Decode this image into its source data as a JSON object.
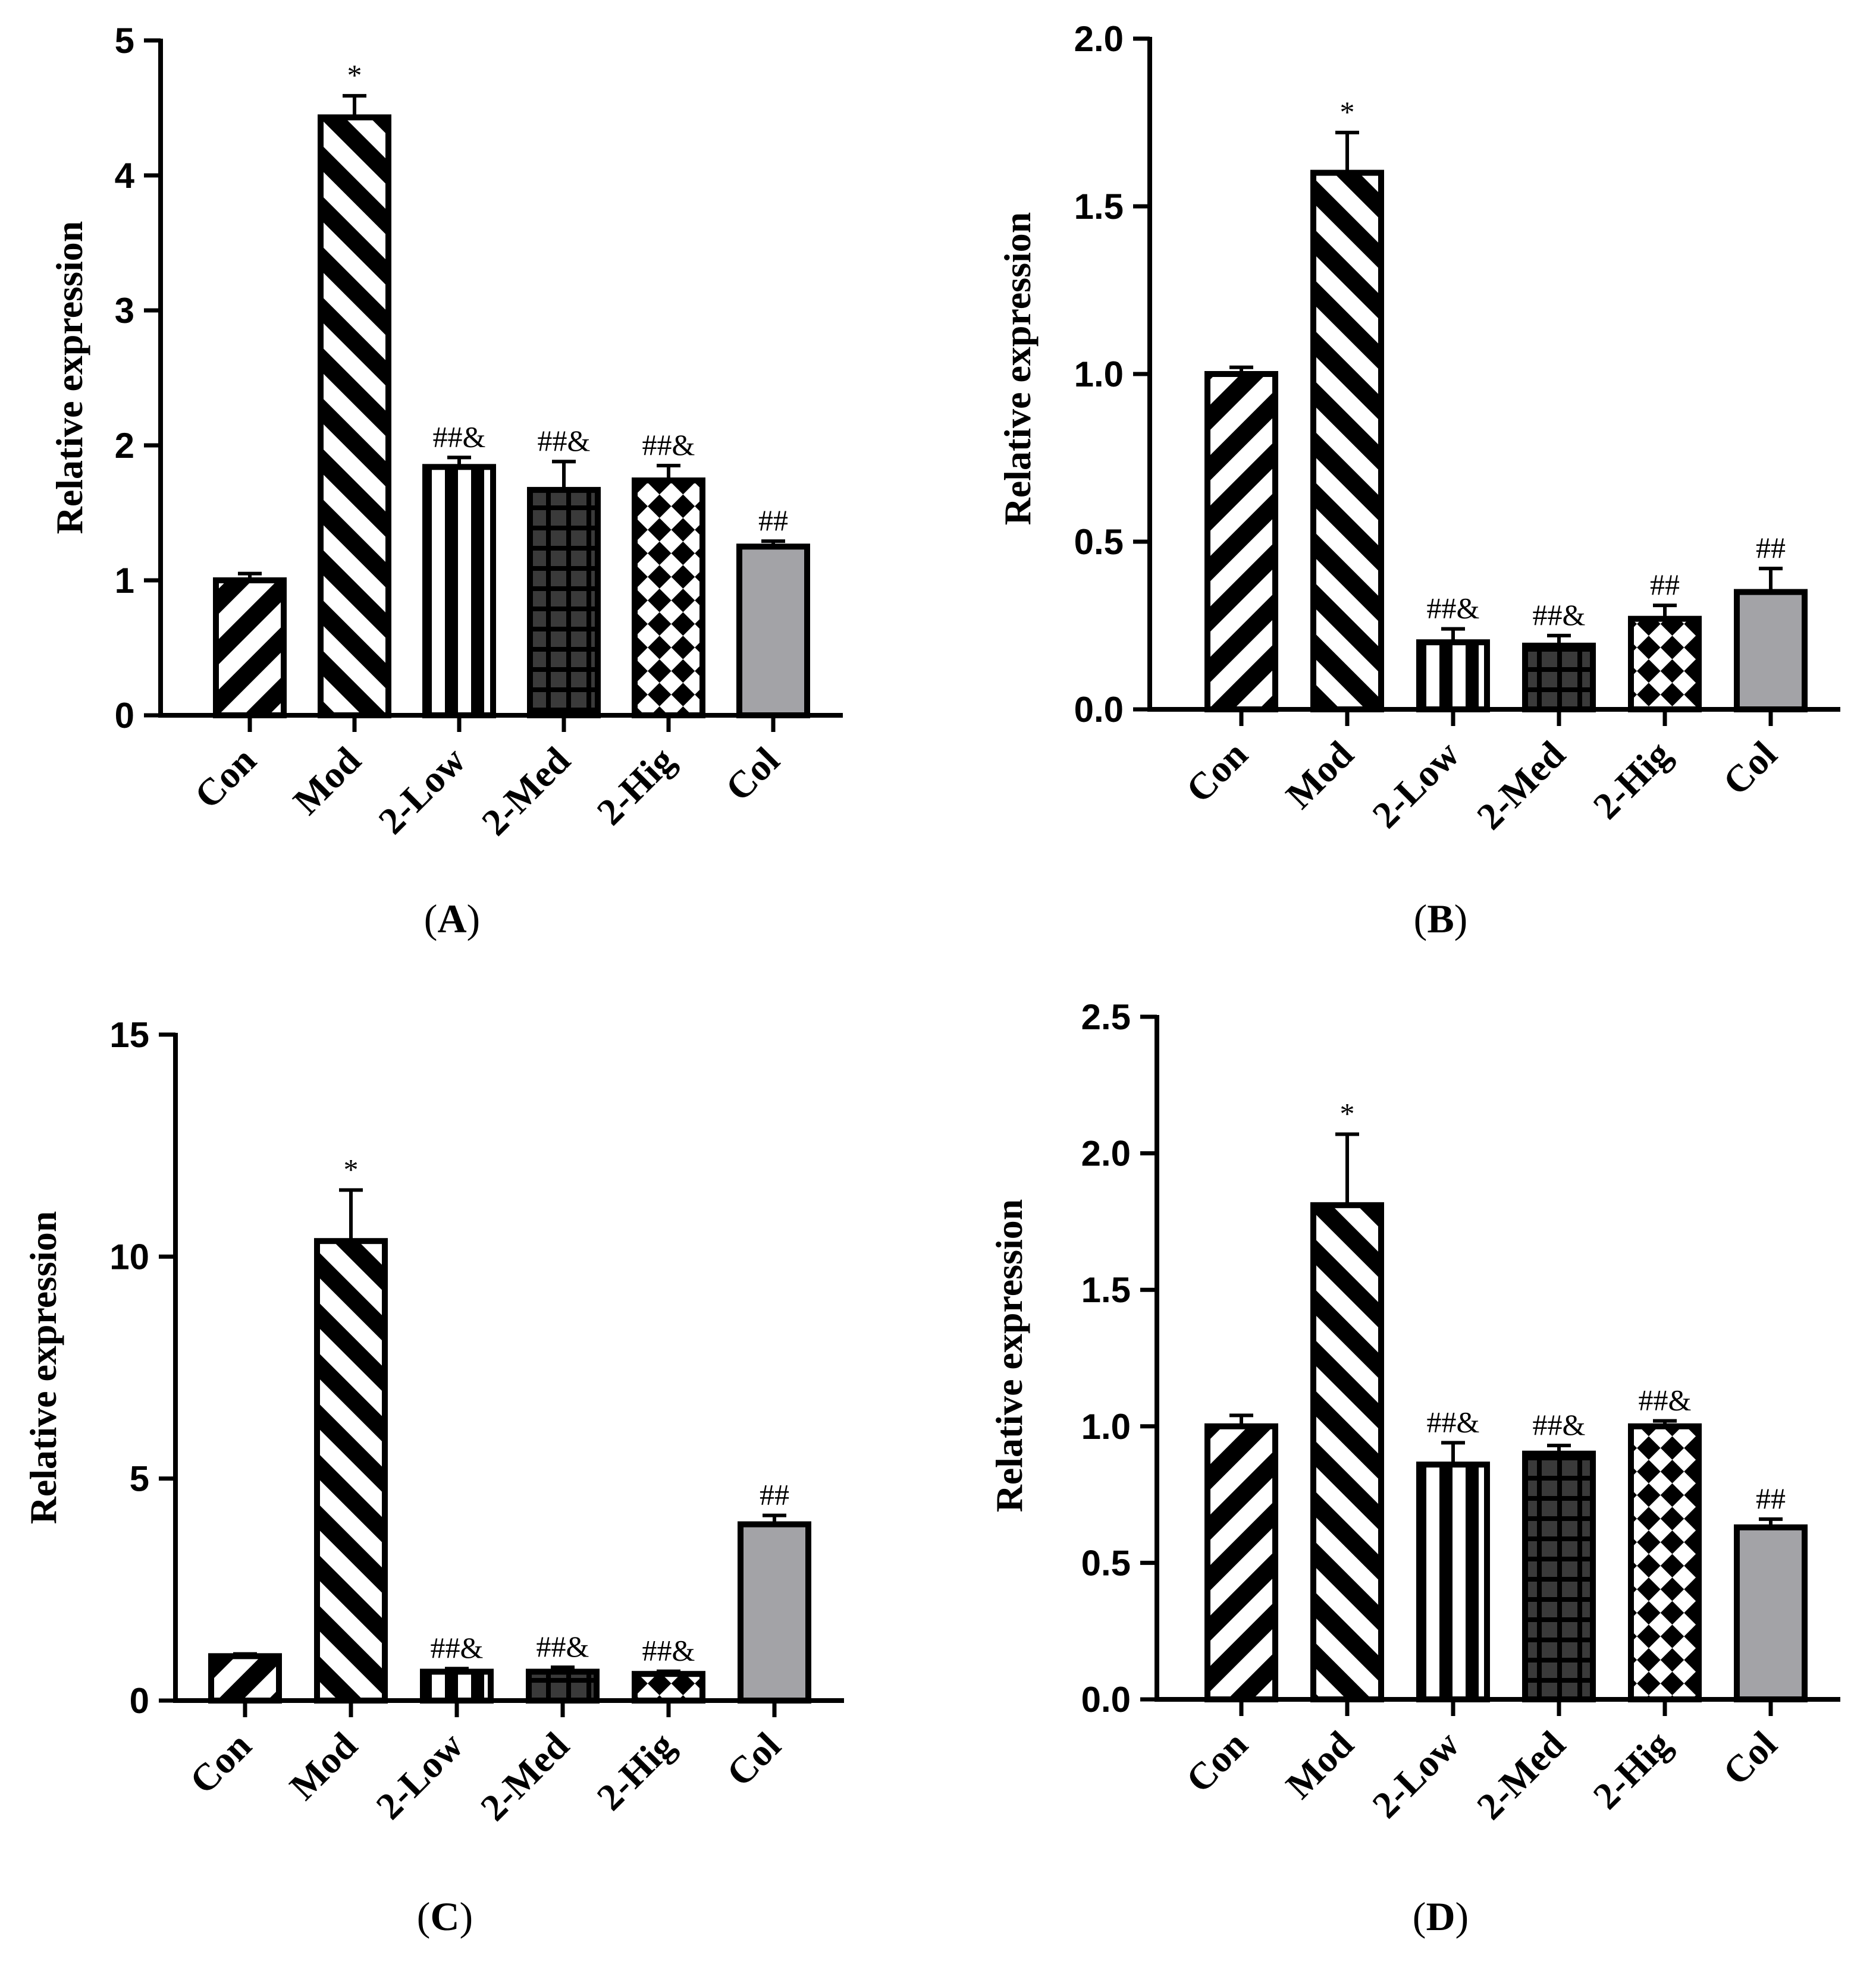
{
  "figure": {
    "panels": [
      "(A)",
      "(B)",
      "(C)",
      "(D)"
    ]
  },
  "patterns": {
    "Con": "diag-back",
    "Mod": "diag-fwd",
    "2-Low": "vstripe",
    "2-Med": "grid",
    "2-Hig": "checker",
    "Col": "gray"
  },
  "colors": {
    "ink": "#000000",
    "bar_light": "#ffffff",
    "bar_gray": "#a3a3a7",
    "grid_dark": "#3a3a3a"
  },
  "chart_data": [
    {
      "panel": "A",
      "panel_prefix": "(",
      "panel_letter": "A",
      "panel_suffix": ")",
      "type": "bar",
      "title": "",
      "xlabel": "",
      "ylabel": "Relative expression",
      "categories": [
        "Con",
        "Mod",
        "2-Low",
        "2-Med",
        "2-Hig",
        "Col"
      ],
      "values": [
        1.0,
        4.43,
        1.84,
        1.67,
        1.74,
        1.25
      ],
      "errors": [
        0.05,
        0.16,
        0.07,
        0.21,
        0.11,
        0.04
      ],
      "annotations": [
        "",
        "*",
        "##&",
        "##&",
        "##&",
        "##"
      ],
      "ylim": [
        0,
        5
      ],
      "yticks": [
        0,
        1,
        2,
        3,
        4,
        5
      ],
      "ytick_labels": [
        "0",
        "1",
        "2",
        "3",
        "4",
        "5"
      ]
    },
    {
      "panel": "B",
      "panel_prefix": "(",
      "panel_letter": "B",
      "panel_suffix": ")",
      "type": "bar",
      "title": "",
      "xlabel": "",
      "ylabel": "Relative expression",
      "categories": [
        "Con",
        "Mod",
        "2-Low",
        "2-Med",
        "2-Hig",
        "Col"
      ],
      "values": [
        1.0,
        1.6,
        0.2,
        0.19,
        0.27,
        0.35
      ],
      "errors": [
        0.02,
        0.12,
        0.04,
        0.03,
        0.04,
        0.07
      ],
      "annotations": [
        "",
        "*",
        "##&",
        "##&",
        "##",
        "##"
      ],
      "ylim": [
        0,
        2.0
      ],
      "yticks": [
        0,
        0.5,
        1.0,
        1.5,
        2.0
      ],
      "ytick_labels": [
        "0.0",
        "0.5",
        "1.0",
        "1.5",
        "2.0"
      ]
    },
    {
      "panel": "C",
      "panel_prefix": "(",
      "panel_letter": "C",
      "panel_suffix": ")",
      "type": "bar",
      "title": "",
      "xlabel": "",
      "ylabel": "Relative expression",
      "categories": [
        "Con",
        "Mod",
        "2-Low",
        "2-Med",
        "2-Hig",
        "Col"
      ],
      "values": [
        1.0,
        10.35,
        0.65,
        0.65,
        0.6,
        3.97
      ],
      "errors": [
        0.05,
        1.15,
        0.07,
        0.1,
        0.06,
        0.2
      ],
      "annotations": [
        "",
        "*",
        "##&",
        "##&",
        "##&",
        "##"
      ],
      "ylim": [
        0,
        15
      ],
      "yticks": [
        0,
        5,
        10,
        15
      ],
      "ytick_labels": [
        "0",
        "5",
        "10",
        "15"
      ]
    },
    {
      "panel": "D",
      "panel_prefix": "(",
      "panel_letter": "D",
      "panel_suffix": ")",
      "type": "bar",
      "title": "",
      "xlabel": "",
      "ylabel": "Relative expression",
      "categories": [
        "Con",
        "Mod",
        "2-Low",
        "2-Med",
        "2-Hig",
        "Col"
      ],
      "values": [
        1.0,
        1.81,
        0.86,
        0.9,
        1.0,
        0.63
      ],
      "errors": [
        0.04,
        0.26,
        0.08,
        0.03,
        0.02,
        0.03
      ],
      "annotations": [
        "",
        "*",
        "##&",
        "##&",
        "##&",
        "##"
      ],
      "ylim": [
        0,
        2.5
      ],
      "yticks": [
        0,
        0.5,
        1.0,
        1.5,
        2.0,
        2.5
      ],
      "ytick_labels": [
        "0.0",
        "0.5",
        "1.0",
        "1.5",
        "2.0",
        "2.5"
      ]
    }
  ]
}
